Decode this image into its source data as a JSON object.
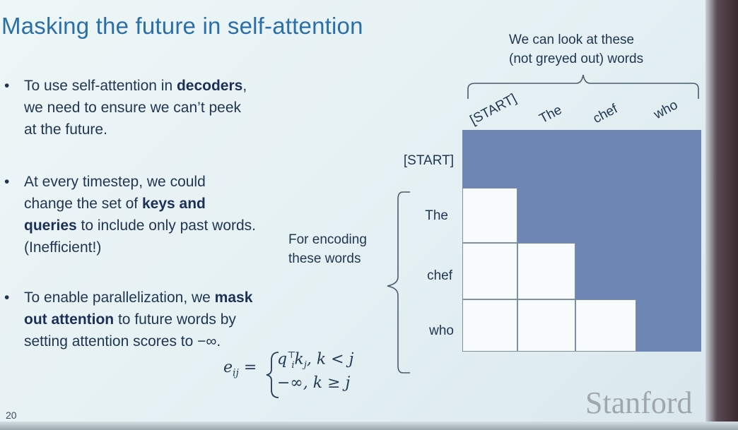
{
  "slide": {
    "title": "Masking the future in self-attention",
    "page_number": "20",
    "logo": "Stanford"
  },
  "bullets": [
    {
      "dot": "•",
      "parts": [
        "To use self-attention in ",
        "decoders",
        ", we need to ensure we can’t peek at the future."
      ]
    },
    {
      "dot": "•",
      "parts": [
        "At every timestep, we could change the set of ",
        "keys and queries",
        " to include only past words. (Inefficient!)"
      ]
    },
    {
      "dot": "•",
      "parts": [
        "To enable parallelization, we ",
        "mask out attention",
        " to future words by setting attention scores to −∞."
      ]
    }
  ],
  "diagram": {
    "top_note": [
      "We can look at these",
      "(not greyed out) words"
    ],
    "left_note": [
      "For encoding",
      "these words"
    ],
    "col_labels": [
      "[START]",
      "The",
      "chef",
      "who"
    ],
    "row_labels": [
      "[START]",
      "The",
      "chef",
      "who"
    ],
    "mask_grid": [
      [
        "grey",
        "grey",
        "grey",
        "grey"
      ],
      [
        "white",
        "grey",
        "grey",
        "grey"
      ],
      [
        "white",
        "white",
        "grey",
        "grey"
      ],
      [
        "white",
        "white",
        "white",
        "grey"
      ]
    ],
    "colors": {
      "grey": "#6e86b4",
      "white": "#f8fbfb"
    }
  },
  "equation": {
    "lhs": "e",
    "lhs_sub": "ij",
    "eq": "=",
    "case1": "q",
    "case1_sub": "i",
    "case1_sup": "⊤",
    "case1_rest": "k",
    "case1_rest_sub": "j",
    "case1_cond": ", k < j",
    "case2": "−∞, k ≥ j"
  }
}
